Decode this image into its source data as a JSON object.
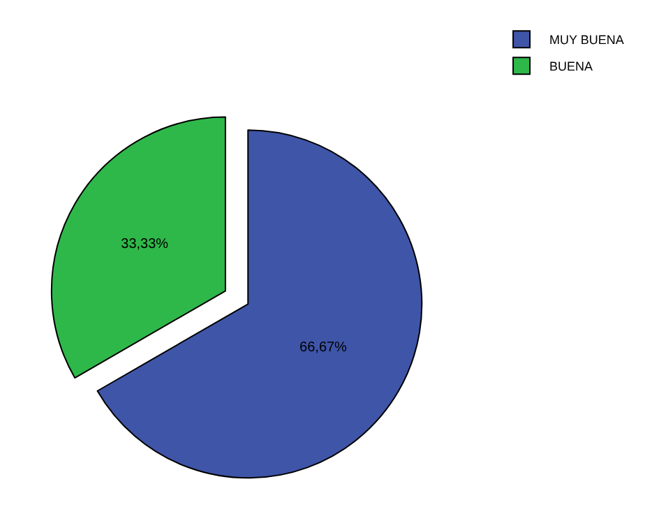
{
  "chart_data": {
    "type": "pie",
    "categories": [
      "MUY BUENA",
      "BUENA"
    ],
    "values": [
      66.67,
      33.33
    ],
    "value_labels": [
      "66,67%",
      "33,33%"
    ],
    "colors": [
      "#3f55a8",
      "#2fb84a"
    ],
    "legend": "top right"
  }
}
